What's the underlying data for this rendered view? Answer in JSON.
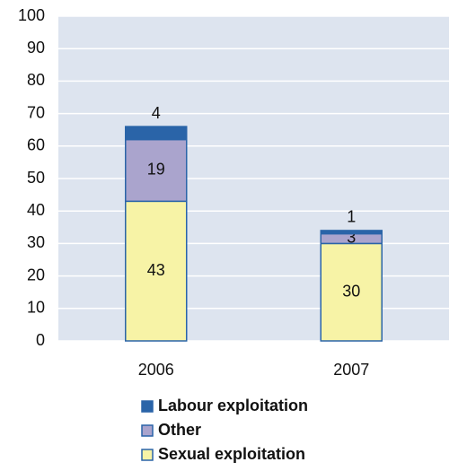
{
  "chart_data": {
    "type": "stacked_bar",
    "categories": [
      "2006",
      "2007"
    ],
    "series": [
      {
        "name": "Sexual exploitation",
        "color": "#f7f3a6",
        "values": [
          43,
          30
        ]
      },
      {
        "name": "Other",
        "color": "#aaa4cd",
        "values": [
          19,
          3
        ]
      },
      {
        "name": "Labour exploitation",
        "color": "#2a64a8",
        "values": [
          4,
          1
        ]
      }
    ],
    "ylim": [
      0,
      100
    ],
    "yticks": [
      0,
      10,
      20,
      30,
      40,
      50,
      60,
      70,
      80,
      90,
      100
    ],
    "grid": true
  }
}
